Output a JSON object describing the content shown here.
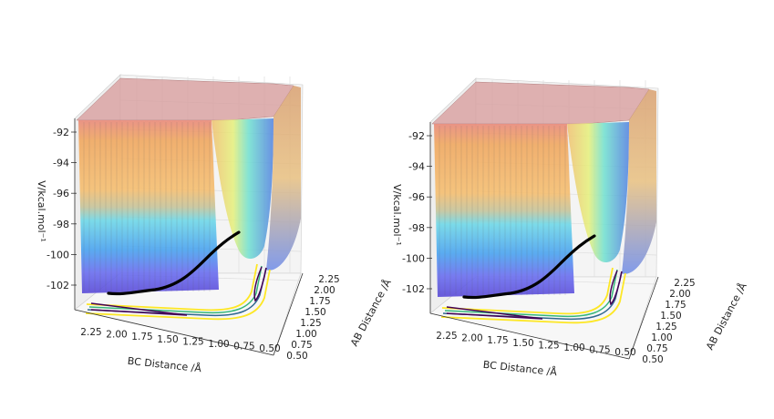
{
  "chart_data": [
    {
      "type": "surface3d",
      "title": "",
      "xlabel": "BC Distance /Å",
      "ylabel": "AB Distance /Å",
      "zlabel": "V/kcal.mol$^{-1}$",
      "zlabel_display": "V/kcal.mol⁻¹",
      "x_ticks": [
        "2.25",
        "2.00",
        "1.75",
        "1.50",
        "1.25",
        "1.00",
        "0.75",
        "0.50"
      ],
      "y_ticks": [
        "0.50",
        "0.75",
        "1.00",
        "1.25",
        "1.50",
        "1.75",
        "2.00",
        "2.25"
      ],
      "z_ticks": [
        "-92",
        "-94",
        "-96",
        "-98",
        "-100",
        "-102"
      ],
      "xlim": [
        0.5,
        2.3
      ],
      "ylim": [
        0.5,
        2.3
      ],
      "zlim": [
        -103,
        -91
      ],
      "colormap": "jet",
      "trajectory_color": "#000000",
      "contour_colors": [
        "#440154",
        "#31688e",
        "#35b779",
        "#fde725"
      ]
    },
    {
      "type": "surface3d",
      "title": "",
      "xlabel": "BC Distance /Å",
      "ylabel": "AB Distance /Å",
      "zlabel": "V/kcal.mol$^{-1}$",
      "zlabel_display": "V/kcal.mol⁻¹",
      "x_ticks": [
        "2.25",
        "2.00",
        "1.75",
        "1.50",
        "1.25",
        "1.00",
        "0.75",
        "0.50"
      ],
      "y_ticks": [
        "0.50",
        "0.75",
        "1.00",
        "1.25",
        "1.50",
        "1.75",
        "2.00",
        "2.25"
      ],
      "z_ticks": [
        "-92",
        "-94",
        "-96",
        "-98",
        "-100",
        "-102"
      ],
      "xlim": [
        0.5,
        2.3
      ],
      "ylim": [
        0.5,
        2.3
      ],
      "zlim": [
        -103,
        -91
      ],
      "colormap": "jet",
      "trajectory_color": "#000000",
      "contour_colors": [
        "#440154",
        "#31688e",
        "#35b779",
        "#fde725"
      ]
    }
  ]
}
